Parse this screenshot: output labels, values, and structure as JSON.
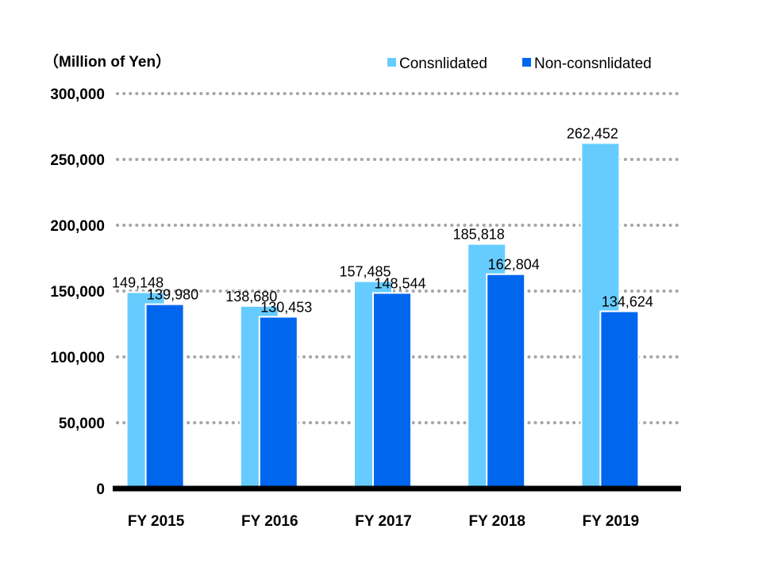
{
  "colors": {
    "consolidated": "#66ccff",
    "non_consolidated": "#0066ee",
    "grid": "#a6a6a6",
    "axis": "#000000",
    "bar_outline": "#ffffff"
  },
  "chart_data": {
    "type": "bar",
    "title": "",
    "unit_label": "（Million of Yen）",
    "xlabel": "",
    "ylabel": "",
    "ylim": [
      0,
      300000
    ],
    "yticks": [
      0,
      50000,
      100000,
      150000,
      200000,
      250000,
      300000
    ],
    "ytick_labels": [
      "0",
      "50,000",
      "100,000",
      "150,000",
      "200,000",
      "250,000",
      "300,000"
    ],
    "grid": true,
    "grid_style": "dotted",
    "legend_position": "top-right",
    "categories": [
      "FY 2015",
      "FY 2016",
      "FY 2017",
      "FY 2018",
      "FY 2019"
    ],
    "series": [
      {
        "name": "Consnlidated",
        "values": [
          149148,
          138680,
          157485,
          185818,
          262452
        ],
        "labels": [
          "149,148",
          "138,680",
          "157,485",
          "185,818",
          "262,452"
        ]
      },
      {
        "name": "Non-consnlidated",
        "values": [
          139980,
          130453,
          148544,
          162804,
          134624
        ],
        "labels": [
          "139,980",
          "130,453",
          "148,544",
          "162,804",
          "134,624"
        ]
      }
    ]
  }
}
